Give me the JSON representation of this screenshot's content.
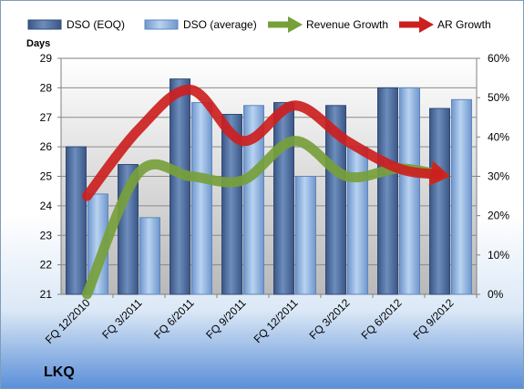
{
  "chart_data": {
    "type": "bar",
    "title": "",
    "company_label": "LKQ",
    "ylabel_left": "Days",
    "categories": [
      "FQ 12/2010",
      "FQ 3/2011",
      "FQ 6/2011",
      "FQ 9/2011",
      "FQ 12/2011",
      "FQ 3/2012",
      "FQ 6/2012",
      "FQ 9/2012"
    ],
    "y_left": {
      "min": 21,
      "max": 29,
      "ticks": [
        "21",
        "22",
        "23",
        "24",
        "25",
        "26",
        "27",
        "28",
        "29"
      ]
    },
    "y_right": {
      "min": 0,
      "max": 60,
      "ticks": [
        "0%",
        "10%",
        "20%",
        "30%",
        "40%",
        "50%",
        "60%"
      ]
    },
    "series": [
      {
        "name": "DSO (EOQ)",
        "type": "bar",
        "axis": "left",
        "color": "#4f6f9f",
        "values": [
          26.0,
          25.4,
          28.3,
          27.1,
          27.5,
          27.4,
          28.0,
          27.3
        ]
      },
      {
        "name": "DSO (average)",
        "type": "bar",
        "axis": "left",
        "color": "#9bbde6",
        "values": [
          24.4,
          23.6,
          27.5,
          27.4,
          25.0,
          26.0,
          28.0,
          27.6
        ]
      },
      {
        "name": "Revenue Growth",
        "type": "line",
        "axis": "right",
        "unit": "%",
        "color": "#77a03b",
        "values": [
          0,
          31,
          30,
          29,
          39,
          30,
          32,
          30
        ]
      },
      {
        "name": "AR Growth",
        "type": "line",
        "axis": "right",
        "unit": "%",
        "color": "#cc2020",
        "values": [
          25,
          42,
          52,
          39,
          48,
          39,
          32,
          30
        ]
      }
    ],
    "legend_position": "top",
    "grid": true
  }
}
